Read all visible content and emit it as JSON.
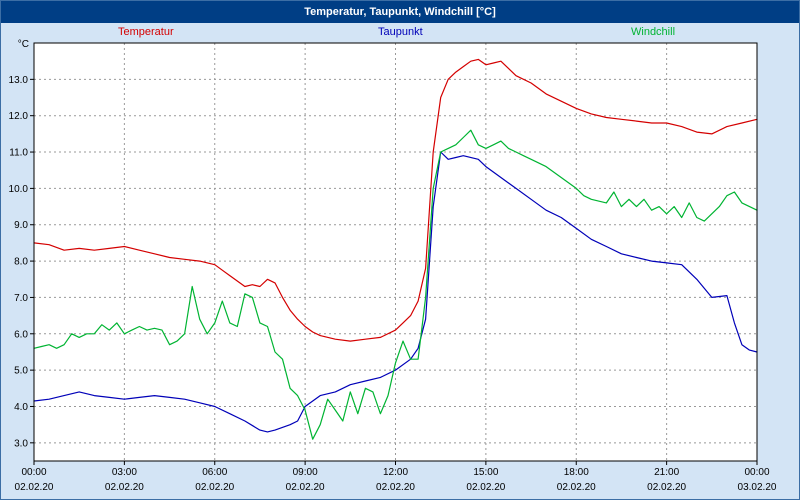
{
  "title_bar": {
    "title": "Temperatur, Taupunkt, Windchill [°C]"
  },
  "legend": [
    {
      "label": "Temperatur",
      "color": "#d40000"
    },
    {
      "label": "Taupunkt",
      "color": "#0000b8"
    },
    {
      "label": "Windchill",
      "color": "#00b432"
    }
  ],
  "colors": {
    "window_background": "#d3e4f5",
    "titlebar_background": "#003e85",
    "plot_background": "#ffffff",
    "plot_border": "#000000",
    "gridline": "#999999"
  },
  "chart_data": {
    "type": "line",
    "title": "Temperatur, Taupunkt, Windchill [°C]",
    "ylabel": "°C",
    "xlabel": "",
    "grid": true,
    "grid_color": "#999999",
    "legend_position": "top",
    "xlim": [
      0,
      24
    ],
    "ylim": [
      2.5,
      14.0
    ],
    "y_ticks": [
      {
        "value": 3,
        "label": "3.0"
      },
      {
        "value": 4,
        "label": "4.0"
      },
      {
        "value": 5,
        "label": "5.0"
      },
      {
        "value": 6,
        "label": "6.0"
      },
      {
        "value": 7,
        "label": "7.0"
      },
      {
        "value": 8,
        "label": "8.0"
      },
      {
        "value": 9,
        "label": "9.0"
      },
      {
        "value": 10,
        "label": "10.0"
      },
      {
        "value": 11,
        "label": "11.0"
      },
      {
        "value": 12,
        "label": "12.0"
      },
      {
        "value": 13,
        "label": "13.0"
      }
    ],
    "x_ticks": [
      {
        "h": 0,
        "time": "00:00",
        "date": "02.02.20"
      },
      {
        "h": 3,
        "time": "03:00",
        "date": "02.02.20"
      },
      {
        "h": 6,
        "time": "06:00",
        "date": "02.02.20"
      },
      {
        "h": 9,
        "time": "09:00",
        "date": "02.02.20"
      },
      {
        "h": 12,
        "time": "12:00",
        "date": "02.02.20"
      },
      {
        "h": 15,
        "time": "15:00",
        "date": "02.02.20"
      },
      {
        "h": 18,
        "time": "18:00",
        "date": "02.02.20"
      },
      {
        "h": 21,
        "time": "21:00",
        "date": "02.02.20"
      },
      {
        "h": 24,
        "time": "00:00",
        "date": "03.02.20"
      }
    ],
    "series": [
      {
        "name": "Temperatur",
        "color": "#d40000",
        "points": [
          [
            0,
            8.5
          ],
          [
            0.5,
            8.45
          ],
          [
            1,
            8.3
          ],
          [
            1.5,
            8.35
          ],
          [
            2,
            8.3
          ],
          [
            2.5,
            8.35
          ],
          [
            3,
            8.4
          ],
          [
            3.5,
            8.3
          ],
          [
            4,
            8.2
          ],
          [
            4.5,
            8.1
          ],
          [
            5,
            8.05
          ],
          [
            5.5,
            8.0
          ],
          [
            6,
            7.9
          ],
          [
            6.25,
            7.75
          ],
          [
            6.5,
            7.6
          ],
          [
            7,
            7.3
          ],
          [
            7.25,
            7.35
          ],
          [
            7.5,
            7.3
          ],
          [
            7.75,
            7.5
          ],
          [
            8,
            7.4
          ],
          [
            8.25,
            7.0
          ],
          [
            8.5,
            6.65
          ],
          [
            8.75,
            6.4
          ],
          [
            9,
            6.2
          ],
          [
            9.25,
            6.05
          ],
          [
            9.5,
            5.95
          ],
          [
            10,
            5.85
          ],
          [
            10.5,
            5.8
          ],
          [
            11,
            5.85
          ],
          [
            11.5,
            5.9
          ],
          [
            12,
            6.1
          ],
          [
            12.25,
            6.3
          ],
          [
            12.5,
            6.5
          ],
          [
            12.75,
            6.9
          ],
          [
            13,
            7.8
          ],
          [
            13.25,
            11.0
          ],
          [
            13.5,
            12.5
          ],
          [
            13.75,
            13.0
          ],
          [
            14,
            13.2
          ],
          [
            14.25,
            13.35
          ],
          [
            14.5,
            13.5
          ],
          [
            14.75,
            13.55
          ],
          [
            15,
            13.4
          ],
          [
            15.25,
            13.45
          ],
          [
            15.5,
            13.5
          ],
          [
            15.75,
            13.3
          ],
          [
            16,
            13.1
          ],
          [
            16.5,
            12.9
          ],
          [
            17,
            12.6
          ],
          [
            17.5,
            12.4
          ],
          [
            18,
            12.2
          ],
          [
            18.5,
            12.05
          ],
          [
            19,
            11.95
          ],
          [
            19.5,
            11.9
          ],
          [
            20,
            11.85
          ],
          [
            20.5,
            11.8
          ],
          [
            21,
            11.8
          ],
          [
            21.5,
            11.7
          ],
          [
            22,
            11.55
          ],
          [
            22.5,
            11.5
          ],
          [
            23,
            11.7
          ],
          [
            23.5,
            11.8
          ],
          [
            24,
            11.9
          ]
        ]
      },
      {
        "name": "Taupunkt",
        "color": "#0000b8",
        "points": [
          [
            0,
            4.15
          ],
          [
            0.5,
            4.2
          ],
          [
            1,
            4.3
          ],
          [
            1.5,
            4.4
          ],
          [
            2,
            4.3
          ],
          [
            2.5,
            4.25
          ],
          [
            3,
            4.2
          ],
          [
            3.5,
            4.25
          ],
          [
            4,
            4.3
          ],
          [
            4.5,
            4.25
          ],
          [
            5,
            4.2
          ],
          [
            5.5,
            4.1
          ],
          [
            6,
            4.0
          ],
          [
            6.5,
            3.8
          ],
          [
            7,
            3.6
          ],
          [
            7.5,
            3.35
          ],
          [
            7.75,
            3.3
          ],
          [
            8,
            3.35
          ],
          [
            8.5,
            3.5
          ],
          [
            8.75,
            3.6
          ],
          [
            9,
            4.0
          ],
          [
            9.5,
            4.3
          ],
          [
            10,
            4.4
          ],
          [
            10.5,
            4.6
          ],
          [
            11,
            4.7
          ],
          [
            11.5,
            4.8
          ],
          [
            12,
            5.0
          ],
          [
            12.5,
            5.3
          ],
          [
            12.75,
            5.6
          ],
          [
            13,
            6.4
          ],
          [
            13.25,
            9.5
          ],
          [
            13.5,
            11.0
          ],
          [
            13.75,
            10.8
          ],
          [
            14,
            10.85
          ],
          [
            14.25,
            10.9
          ],
          [
            14.75,
            10.8
          ],
          [
            15,
            10.6
          ],
          [
            15.5,
            10.3
          ],
          [
            16,
            10.0
          ],
          [
            16.5,
            9.7
          ],
          [
            17,
            9.4
          ],
          [
            17.5,
            9.2
          ],
          [
            18,
            8.9
          ],
          [
            18.5,
            8.6
          ],
          [
            19,
            8.4
          ],
          [
            19.5,
            8.2
          ],
          [
            20,
            8.1
          ],
          [
            20.5,
            8.0
          ],
          [
            21,
            7.95
          ],
          [
            21.5,
            7.9
          ],
          [
            22,
            7.5
          ],
          [
            22.5,
            7.0
          ],
          [
            23,
            7.05
          ],
          [
            23.25,
            6.3
          ],
          [
            23.5,
            5.7
          ],
          [
            23.75,
            5.55
          ],
          [
            24,
            5.5
          ]
        ]
      },
      {
        "name": "Windchill",
        "color": "#00b432",
        "points": [
          [
            0,
            5.6
          ],
          [
            0.25,
            5.65
          ],
          [
            0.5,
            5.7
          ],
          [
            0.75,
            5.6
          ],
          [
            1,
            5.7
          ],
          [
            1.25,
            6.0
          ],
          [
            1.5,
            5.9
          ],
          [
            1.75,
            6.0
          ],
          [
            2,
            6.0
          ],
          [
            2.25,
            6.25
          ],
          [
            2.5,
            6.1
          ],
          [
            2.75,
            6.3
          ],
          [
            3,
            6.0
          ],
          [
            3.25,
            6.1
          ],
          [
            3.5,
            6.2
          ],
          [
            3.75,
            6.1
          ],
          [
            4,
            6.15
          ],
          [
            4.25,
            6.1
          ],
          [
            4.5,
            5.7
          ],
          [
            4.75,
            5.8
          ],
          [
            5,
            6.0
          ],
          [
            5.25,
            7.3
          ],
          [
            5.5,
            6.4
          ],
          [
            5.75,
            6.0
          ],
          [
            6,
            6.3
          ],
          [
            6.25,
            6.9
          ],
          [
            6.5,
            6.3
          ],
          [
            6.75,
            6.2
          ],
          [
            7,
            7.1
          ],
          [
            7.25,
            7.0
          ],
          [
            7.5,
            6.3
          ],
          [
            7.75,
            6.2
          ],
          [
            8,
            5.5
          ],
          [
            8.25,
            5.3
          ],
          [
            8.5,
            4.5
          ],
          [
            8.75,
            4.3
          ],
          [
            9,
            3.9
          ],
          [
            9.25,
            3.1
          ],
          [
            9.5,
            3.5
          ],
          [
            9.75,
            4.2
          ],
          [
            10,
            3.9
          ],
          [
            10.25,
            3.6
          ],
          [
            10.5,
            4.4
          ],
          [
            10.75,
            3.8
          ],
          [
            11,
            4.5
          ],
          [
            11.25,
            4.4
          ],
          [
            11.5,
            3.8
          ],
          [
            11.75,
            4.3
          ],
          [
            12,
            5.2
          ],
          [
            12.25,
            5.8
          ],
          [
            12.5,
            5.3
          ],
          [
            12.75,
            5.3
          ],
          [
            13,
            7.0
          ],
          [
            13.25,
            10.0
          ],
          [
            13.5,
            11.0
          ],
          [
            13.75,
            11.1
          ],
          [
            14,
            11.2
          ],
          [
            14.25,
            11.4
          ],
          [
            14.5,
            11.6
          ],
          [
            14.75,
            11.2
          ],
          [
            15,
            11.1
          ],
          [
            15.25,
            11.2
          ],
          [
            15.5,
            11.3
          ],
          [
            15.75,
            11.1
          ],
          [
            16,
            11.0
          ],
          [
            16.25,
            10.9
          ],
          [
            16.5,
            10.8
          ],
          [
            17,
            10.6
          ],
          [
            17.5,
            10.3
          ],
          [
            18,
            10.0
          ],
          [
            18.25,
            9.8
          ],
          [
            18.5,
            9.7
          ],
          [
            19,
            9.6
          ],
          [
            19.25,
            9.9
          ],
          [
            19.5,
            9.5
          ],
          [
            19.75,
            9.7
          ],
          [
            20,
            9.5
          ],
          [
            20.25,
            9.7
          ],
          [
            20.5,
            9.4
          ],
          [
            20.75,
            9.5
          ],
          [
            21,
            9.3
          ],
          [
            21.25,
            9.5
          ],
          [
            21.5,
            9.2
          ],
          [
            21.75,
            9.6
          ],
          [
            22,
            9.2
          ],
          [
            22.25,
            9.1
          ],
          [
            22.5,
            9.3
          ],
          [
            22.75,
            9.5
          ],
          [
            23,
            9.8
          ],
          [
            23.25,
            9.9
          ],
          [
            23.5,
            9.6
          ],
          [
            23.75,
            9.5
          ],
          [
            24,
            9.4
          ]
        ]
      }
    ]
  }
}
